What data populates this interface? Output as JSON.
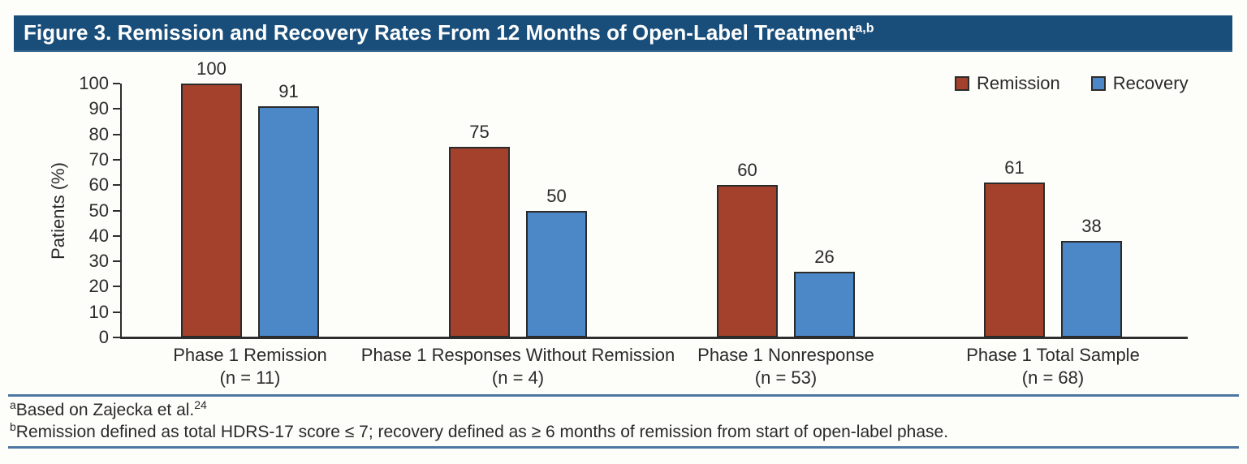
{
  "figure": {
    "title": "Figure 3. Remission and Recovery Rates From 12 Months of Open-Label Treatment",
    "title_superscript": "a,b"
  },
  "chart_data": {
    "type": "bar",
    "title": "Remission and Recovery Rates From 12 Months of Open-Label Treatment",
    "categories": [
      "Phase 1 Remission",
      "Phase 1 Responses Without Remission",
      "Phase 1 Nonresponse",
      "Phase 1 Total Sample"
    ],
    "category_sublabels": [
      "(n = 11)",
      "(n = 4)",
      "(n = 53)",
      "(n = 68)"
    ],
    "series": [
      {
        "name": "Remission",
        "color": "#A4412C",
        "values": [
          100,
          75,
          60,
          61
        ]
      },
      {
        "name": "Recovery",
        "color": "#4C87C8",
        "values": [
          91,
          50,
          26,
          38
        ]
      }
    ],
    "xlabel": "",
    "ylabel": "Patients (%)",
    "ylim": [
      0,
      100
    ],
    "ytick_step": 10,
    "grid": false,
    "legend_position": "top-right",
    "bar_value_labels": true
  },
  "footnotes": [
    {
      "marker": "a",
      "text": "Based on Zajecka et al.",
      "ref": "24"
    },
    {
      "marker": "b",
      "text": "Remission defined as total HDRS-17 score ≤ 7; recovery defined as ≥ 6 months of remission from start of open-label phase.",
      "ref": ""
    }
  ],
  "colors": {
    "title_bar_bg": "#1A4E7A",
    "title_text": "#FFFFFF",
    "remission": "#A4412C",
    "recovery": "#4C87C8",
    "bar_outline": "#2B2B2B",
    "axis": "#2F2E2D",
    "rule": "#4D77A3",
    "text": "#2B2A29",
    "background": "#FDFDFA"
  }
}
